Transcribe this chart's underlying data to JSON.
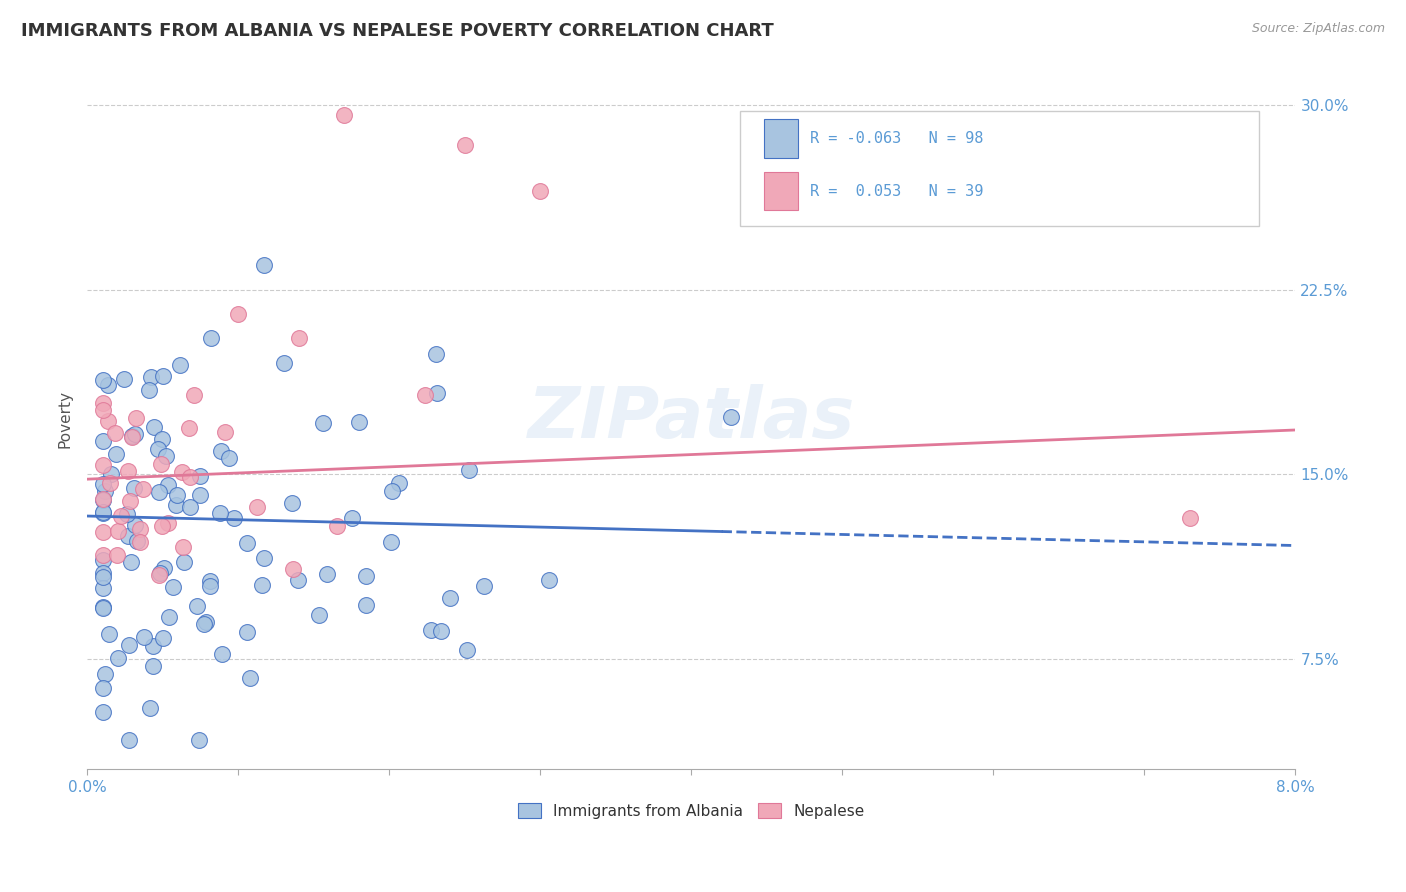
{
  "title": "IMMIGRANTS FROM ALBANIA VS NEPALESE POVERTY CORRELATION CHART",
  "source": "Source: ZipAtlas.com",
  "ylabel": "Poverty",
  "yticks": [
    "7.5%",
    "15.0%",
    "22.5%",
    "30.0%"
  ],
  "ytick_vals": [
    0.075,
    0.15,
    0.225,
    0.3
  ],
  "xmin": 0.0,
  "xmax": 0.08,
  "ymin": 0.03,
  "ymax": 0.315,
  "color_blue": "#a8c4e0",
  "color_pink": "#f0a8b8",
  "color_blue_dark": "#4472c4",
  "color_pink_dark": "#e07898",
  "color_line_blue": "#4472c4",
  "color_line_pink": "#e07898",
  "color_axis_labels": "#5b9bd5",
  "trendline_blue_x0": 0.0,
  "trendline_blue_x1": 0.08,
  "trendline_blue_y0": 0.133,
  "trendline_blue_y1": 0.121,
  "trendline_blue_solid_end": 0.042,
  "trendline_pink_x0": 0.0,
  "trendline_pink_x1": 0.08,
  "trendline_pink_y0": 0.148,
  "trendline_pink_y1": 0.168
}
